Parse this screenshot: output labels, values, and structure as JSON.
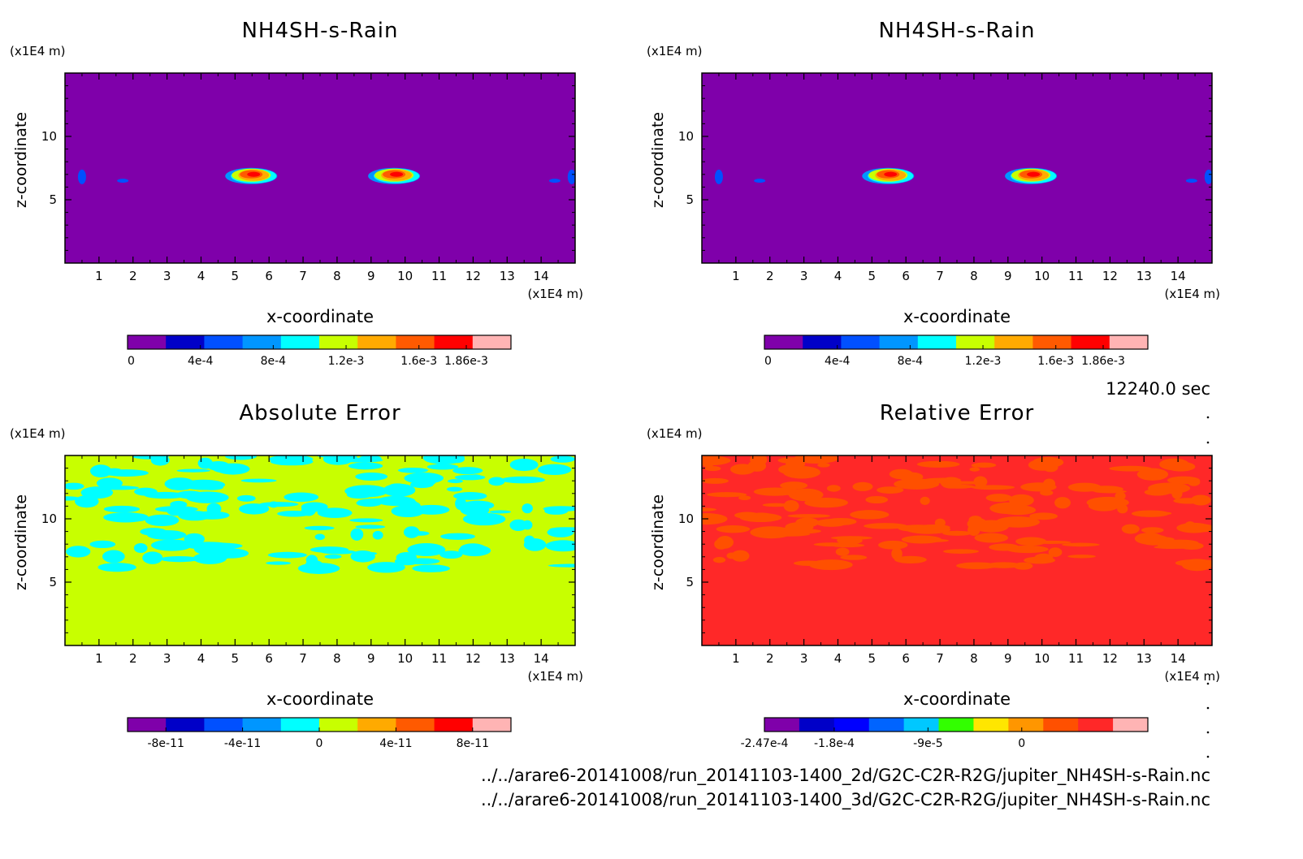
{
  "time_label": "12240.0 sec",
  "file_lines": [
    "../../arare6-20141008/run_20141103-1400_2d/G2C-C2R-R2G/jupiter_NH4SH-s-Rain.nc",
    "../../arare6-20141008/run_20141103-1400_3d/G2C-C2R-R2G/jupiter_NH4SH-s-Rain.nc"
  ],
  "chart_data": [
    {
      "type": "heatmap",
      "title": "NH4SH-s-Rain",
      "xlabel": "x-coordinate",
      "ylabel": "z-coordinate",
      "x_unit": "(x1E4 m)",
      "y_unit": "(x1E4 m)",
      "xlim": [
        0,
        15
      ],
      "ylim": [
        0,
        15
      ],
      "xticks": [
        "1",
        "2",
        "3",
        "4",
        "5",
        "6",
        "7",
        "8",
        "9",
        "10",
        "11",
        "12",
        "13",
        "14"
      ],
      "yticks": [
        "5",
        "10"
      ],
      "background": "#7f00aa",
      "colorbar": {
        "colors": [
          "#7f00aa",
          "#0000c8",
          "#0050ff",
          "#0096ff",
          "#00ffff",
          "#c8ff00",
          "#ffaa00",
          "#ff5a00",
          "#ff0000",
          "#ffb4b4"
        ],
        "tick_labels": [
          "0",
          "4e-4",
          "8e-4",
          "1.2e-3",
          "1.6e-3",
          "1.86e-3"
        ],
        "tick_values": [
          0,
          0.0004,
          0.0008,
          0.0012,
          0.0016,
          0.00186
        ]
      },
      "features": [
        {
          "x": 5.5,
          "z": 7.0,
          "peak": 0.00186
        },
        {
          "x": 9.7,
          "z": 7.0,
          "peak": 0.00186
        },
        {
          "x": 0.5,
          "z": 6.8,
          "peak": 0.0003
        },
        {
          "x": 1.7,
          "z": 6.5,
          "peak": 0.0003
        },
        {
          "x": 14.4,
          "z": 6.5,
          "peak": 0.0003
        },
        {
          "x": 14.9,
          "z": 6.8,
          "peak": 0.0003
        }
      ]
    },
    {
      "type": "heatmap",
      "title": "NH4SH-s-Rain",
      "xlabel": "x-coordinate",
      "ylabel": "z-coordinate",
      "x_unit": "(x1E4 m)",
      "y_unit": "(x1E4 m)",
      "xlim": [
        0,
        15
      ],
      "ylim": [
        0,
        15
      ],
      "xticks": [
        "1",
        "2",
        "3",
        "4",
        "5",
        "6",
        "7",
        "8",
        "9",
        "10",
        "11",
        "12",
        "13",
        "14"
      ],
      "yticks": [
        "5",
        "10"
      ],
      "background": "#7f00aa",
      "colorbar": {
        "colors": [
          "#7f00aa",
          "#0000c8",
          "#0050ff",
          "#0096ff",
          "#00ffff",
          "#c8ff00",
          "#ffaa00",
          "#ff5a00",
          "#ff0000",
          "#ffb4b4"
        ],
        "tick_labels": [
          "0",
          "4e-4",
          "8e-4",
          "1.2e-3",
          "1.6e-3",
          "1.86e-3"
        ],
        "tick_values": [
          0,
          0.0004,
          0.0008,
          0.0012,
          0.0016,
          0.00186
        ]
      },
      "features": [
        {
          "x": 5.5,
          "z": 7.0,
          "peak": 0.00186
        },
        {
          "x": 9.7,
          "z": 7.0,
          "peak": 0.00186
        },
        {
          "x": 0.5,
          "z": 6.8,
          "peak": 0.0003
        },
        {
          "x": 1.7,
          "z": 6.5,
          "peak": 0.0003
        },
        {
          "x": 14.4,
          "z": 6.5,
          "peak": 0.0003
        },
        {
          "x": 14.9,
          "z": 6.8,
          "peak": 0.0003
        }
      ]
    },
    {
      "type": "heatmap",
      "title": "Absolute Error",
      "xlabel": "x-coordinate",
      "ylabel": "z-coordinate",
      "x_unit": "(x1E4 m)",
      "y_unit": "(x1E4 m)",
      "xlim": [
        0,
        15
      ],
      "ylim": [
        0,
        15
      ],
      "xticks": [
        "1",
        "2",
        "3",
        "4",
        "5",
        "6",
        "7",
        "8",
        "9",
        "10",
        "11",
        "12",
        "13",
        "14"
      ],
      "yticks": [
        "5",
        "10"
      ],
      "background": "#c8ff00",
      "pattern_color": "#00ffff",
      "pattern_zmin": 6.0,
      "colorbar": {
        "colors": [
          "#7f00aa",
          "#0000c8",
          "#0050ff",
          "#0096ff",
          "#00ffff",
          "#c8ff00",
          "#ffaa00",
          "#ff5a00",
          "#ff0000",
          "#ffb4b4"
        ],
        "tick_labels": [
          "-8e-11",
          "-4e-11",
          "0",
          "4e-11",
          "8e-11"
        ],
        "tick_values": [
          -8e-11,
          -4e-11,
          0,
          4e-11,
          8e-11
        ]
      }
    },
    {
      "type": "heatmap",
      "title": "Relative Error",
      "xlabel": "x-coordinate",
      "ylabel": "z-coordinate",
      "x_unit": "(x1E4 m)",
      "y_unit": "(x1E4 m)",
      "xlim": [
        0,
        15
      ],
      "ylim": [
        0,
        15
      ],
      "xticks": [
        "1",
        "2",
        "3",
        "4",
        "5",
        "6",
        "7",
        "8",
        "9",
        "10",
        "11",
        "12",
        "13",
        "14"
      ],
      "yticks": [
        "5",
        "10"
      ],
      "background": "#ff2828",
      "pattern_color": "#ff5000",
      "pattern_zmin": 6.0,
      "colorbar": {
        "colors": [
          "#7f00aa",
          "#0000c8",
          "#0000ff",
          "#0064ff",
          "#00c8ff",
          "#32ff00",
          "#ffe600",
          "#ff9600",
          "#ff5000",
          "#ff2828",
          "#ffb4b4"
        ],
        "tick_labels": [
          "-2.47e-4",
          "-1.8e-4",
          "-9e-5",
          "0"
        ],
        "tick_values": [
          -0.000247,
          -0.00018,
          -9e-05,
          0
        ]
      }
    }
  ]
}
